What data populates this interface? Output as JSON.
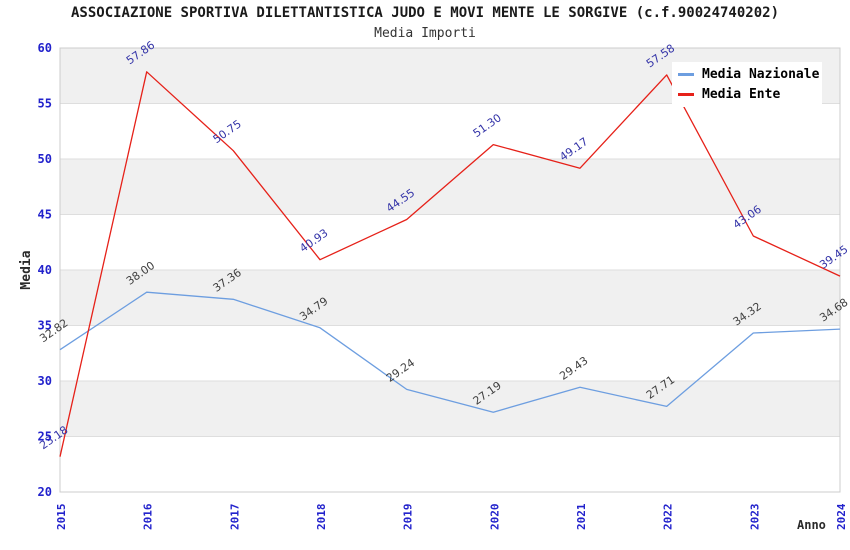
{
  "header": {
    "title": "ASSOCIAZIONE SPORTIVA DILETTANTISTICA JUDO E MOVI MENTE LE SORGIVE (c.f.90024740202)",
    "subtitle": "Media Importi"
  },
  "chart_data": {
    "type": "line",
    "title": "ASSOCIAZIONE SPORTIVA DILETTANTISTICA JUDO E MOVI MENTE LE SORGIVE (c.f.90024740202)",
    "subtitle": "Media Importi",
    "xlabel": "Anno",
    "ylabel": "Media",
    "categories": [
      "2015",
      "2016",
      "2017",
      "2018",
      "2019",
      "2020",
      "2021",
      "2022",
      "2023",
      "2024"
    ],
    "series": [
      {
        "name": "Media Nazionale",
        "color": "#6D9EE0",
        "label_color": "#3F3F3F",
        "values": [
          32.82,
          38.0,
          37.36,
          34.79,
          29.24,
          27.19,
          29.43,
          27.71,
          34.32,
          34.68
        ]
      },
      {
        "name": "Media Ente",
        "color": "#E62119",
        "label_color": "#3434A8",
        "values": [
          23.18,
          57.86,
          50.75,
          40.93,
          44.55,
          51.3,
          49.17,
          57.58,
          43.06,
          39.45
        ]
      }
    ],
    "ylim": [
      20,
      60
    ],
    "ytick_step": 5,
    "grid": "alternating-horizontal-bands",
    "legend_position": "top-right",
    "colors": {
      "band": "#F0F0F0",
      "gridline": "#DEDEDE",
      "plot_border": "#CCCCCC",
      "tick_label": "#2222CC",
      "axis_title": "#2B2B2B"
    }
  }
}
